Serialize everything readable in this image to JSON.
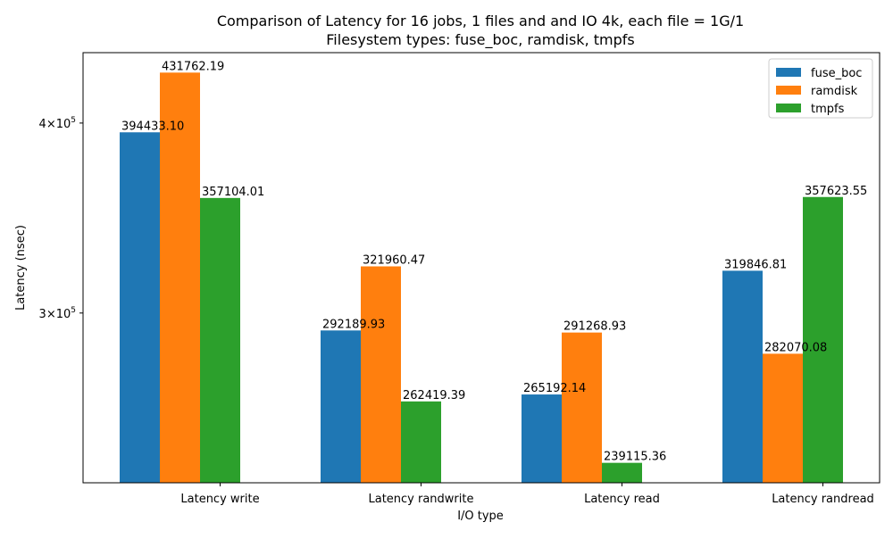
{
  "chart_data": {
    "type": "bar",
    "title_line1": "Comparison of Latency for 16 jobs, 1 files and  and IO 4k, each file = 1G/1",
    "title_line2": "Filesystem types: fuse_boc, ramdisk, tmpfs",
    "xlabel": "I/O type",
    "ylabel": "Latency (nsec)",
    "y_scale": "log",
    "ylim": [
      232000,
      445000
    ],
    "y_ticks": [
      {
        "value": 300000,
        "mantissa": "3",
        "base": "10",
        "exp": "5"
      },
      {
        "value": 400000,
        "mantissa": "4",
        "base": "10",
        "exp": "5"
      }
    ],
    "categories": [
      "Latency write",
      "Latency randwrite",
      "Latency read",
      "Latency randread"
    ],
    "series": [
      {
        "name": "fuse_boc",
        "color": "#1f77b4",
        "values": [
          394433.1,
          292189.93,
          265192.14,
          319846.81
        ],
        "labels": [
          "394433.10",
          "292189.93",
          "265192.14",
          "319846.81"
        ]
      },
      {
        "name": "ramdisk",
        "color": "#ff7f0e",
        "values": [
          431762.19,
          321960.47,
          291268.93,
          282070.08
        ],
        "labels": [
          "431762.19",
          "321960.47",
          "291268.93",
          "282070.08"
        ]
      },
      {
        "name": "tmpfs",
        "color": "#2ca02c",
        "values": [
          357104.01,
          262419.39,
          239115.36,
          357623.55
        ],
        "labels": [
          "357104.01",
          "262419.39",
          "239115.36",
          "357623.55"
        ]
      }
    ],
    "legend_position": "upper right",
    "grid": false
  }
}
